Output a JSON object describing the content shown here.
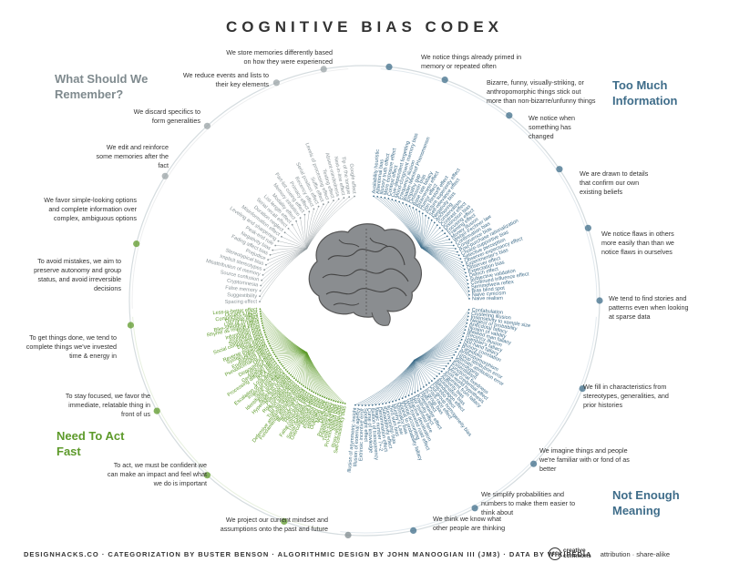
{
  "title": "COGNITIVE BIAS CODEX",
  "quadrants": {
    "remember": {
      "label": "What Should We Remember?",
      "color": "#7f8a8e"
    },
    "info": {
      "label": "Too Much Information",
      "color": "#3f6d8a"
    },
    "act": {
      "label": "Need To Act Fast",
      "color": "#5d9a2a"
    },
    "meaning": {
      "label": "Not Enough Meaning",
      "color": "#3f6d8a"
    }
  },
  "notes_left": [
    "We store memories differently based on how they were experienced",
    "We reduce events and lists to their key elements",
    "We discard specifics to form generalities",
    "We edit and reinforce some memories after the fact",
    "We favor simple-looking options and complete information over complex, ambiguous options",
    "To avoid mistakes, we aim to preserve autonomy and group status, and avoid irreversible decisions",
    "To get things done, we tend to complete things we've invested time & energy in",
    "To stay focused, we favor the immediate, relatable thing in front of us",
    "To act, we must be confident we can make an impact and feel what we do is important",
    "We project our current mindset and assumptions onto the past and future"
  ],
  "notes_right": [
    "We notice things already primed in memory or repeated often",
    "Bizarre, funny, visually-striking, or anthropomorphic things stick out more than non-bizarre/unfunny things",
    "We notice when something has changed",
    "We are drawn to details that confirm our own existing beliefs",
    "We notice flaws in others more easily than than we notice flaws in ourselves",
    "We tend to find stories and patterns even when looking at sparse data",
    "We fill in characteristics from stereotypes, generalities, and prior histories",
    "We imagine things and people we're familiar with or fond of as better",
    "We simplify probabilities and numbers to make them easier to think about",
    "We think we know what other people are thinking"
  ],
  "biases": {
    "remember": [
      "Spacing effect",
      "Suggestibility",
      "False memory",
      "Cryptomnesia",
      "Source confusion",
      "Misattribution of memory",
      "Implicit stereotypes",
      "Stereotypical bias",
      "Prejudice",
      "Fading affect bias",
      "Negativity bias",
      "Peak-end rule",
      "Leveling and sharpening",
      "Misinformation effect",
      "Duration neglect",
      "Serial recall effect",
      "List-length effect",
      "Modality effect",
      "Memory inhibition",
      "Part-list cueing effect",
      "Primacy effect",
      "Recency effect",
      "Serial position effect",
      "Suffix effect",
      "Levels of processing effect",
      "Testing effect",
      "Absent-mindedness",
      "Next-in-line effect",
      "Tip of the tongue",
      "Google effect"
    ],
    "info": [
      "Availability heuristic",
      "Attentional bias",
      "Illusory truth effect",
      "Mere exposure effect",
      "Context effect",
      "Cue-dependent forgetting",
      "Mood-congruent memory bias",
      "Frequency illusion",
      "Baader-Meinhof Phenomenon",
      "Empathy gap",
      "Omission bias",
      "Base rate fallacy",
      "Bizarreness effect",
      "Humor effect",
      "Von Restorff effect",
      "Picture superiority effect",
      "Self-relevance effect",
      "Negativity bias",
      "Anchoring",
      "Conservatism",
      "Contrast effect",
      "Distinction bias",
      "Focusing effect",
      "Framing effect",
      "Money illusion",
      "Weber-Fechner law",
      "Confirmation bias",
      "Congruence bias",
      "Post-purchase rationalization",
      "Choice-supportive bias",
      "Selective perception",
      "Observer-expectancy effect",
      "Experimenter's bias",
      "Observer effect",
      "Expectation bias",
      "Ostrich effect",
      "Subjective validation",
      "Continued influence effect",
      "Semmelweis reflex",
      "Bias blind spot",
      "Naive cynicism",
      "Naive realism"
    ],
    "meaning": [
      "Confabulation",
      "Clustering illusion",
      "Insensitivity to sample size",
      "Neglect of probability",
      "Anecdotal fallacy",
      "Illusion of validity",
      "Masked man fallacy",
      "Recency illusion",
      "Gambler's fallacy",
      "Hot-hand fallacy",
      "Illusory correlation",
      "Pareidolia",
      "Anthropomorphism",
      "Group attribution error",
      "Ultimate attribution error",
      "Stereotyping",
      "Essentialism",
      "Functional fixedness",
      "Moral credential effect",
      "Just-world hypothesis",
      "Argument from fallacy",
      "Authority bias",
      "Automation bias",
      "Bandwagon effect",
      "Placebo effect",
      "Out-group homogeneity bias",
      "Cross-race effect",
      "In-group bias",
      "Halo effect",
      "Cheerleader effect",
      "Positivity effect",
      "Not invented here",
      "Reactive devaluation",
      "Well-traveled road effect",
      "Mental accounting",
      "Appeal to probability fallacy",
      "Normalcy bias",
      "Murphy's Law",
      "Zero sum bias",
      "Survivorship bias",
      "Subadditivity effect",
      "Denomination effect",
      "Magic number 7+-2",
      "Illusion of transparency",
      "Curse of knowledge",
      "Spotlight effect",
      "Extrinsic incentive error",
      "Illusion of external agency",
      "Illusion of asymmetric insight"
    ],
    "act": [
      "Self-consistency bias",
      "Rosy retrospection",
      "Impact bias",
      "Pro-innovation bias",
      "Time-saving bias",
      "Planning fallacy",
      "Pessimism bias",
      "Declinism",
      "Moral luck",
      "Outcome bias",
      "Hindsight bias",
      "Projection bias",
      "Restraint bias",
      "Overconfidence effect",
      "Social desirability bias",
      "Third-person effect",
      "False consensus effect",
      "Hard-easy effect",
      "Illusion of control",
      "Illusory superiority",
      "Fundamental attribution error",
      "Defensive attribution hypothesis",
      "Trait ascription bias",
      "Effort justification",
      "Risk compensation",
      "Peltzman effect",
      "Hyperbolic discounting",
      "Appeal to novelty",
      "Identifiable victim effect",
      "Sunk cost fallacy",
      "Irrational escalation",
      "Escalation of commitment",
      "Loss aversion",
      "IKEA effect",
      "Processing difficulty effect",
      "Generation effect",
      "Zero-risk bias",
      "Disposition effect",
      "Unit bias",
      "Pseudocertainty effect",
      "Endowment effect",
      "Backfire effect",
      "System justification",
      "Reverse psychology",
      "Reactance",
      "Decoy effect",
      "Social comparison bias",
      "Status quo bias",
      "Ambiguity bias",
      "Information bias",
      "Belief bias",
      "Rhyme as reason effect",
      "Bike-shedding effect",
      "Law of Triviality",
      "Delmore effect",
      "Conjunction fallacy",
      "Occam's razor",
      "Less-is-better effect"
    ]
  },
  "footer": "DESIGNHACKS.CO · CATEGORIZATION BY BUSTER BENSON · ALGORITHMIC DESIGN BY JOHN MANOOGIAN III (JM3) · DATA BY WIKIPEDIA",
  "license": {
    "logo": "cc",
    "text1": "creative",
    "text2": "commons",
    "attribution": "attribution · share-alike"
  }
}
